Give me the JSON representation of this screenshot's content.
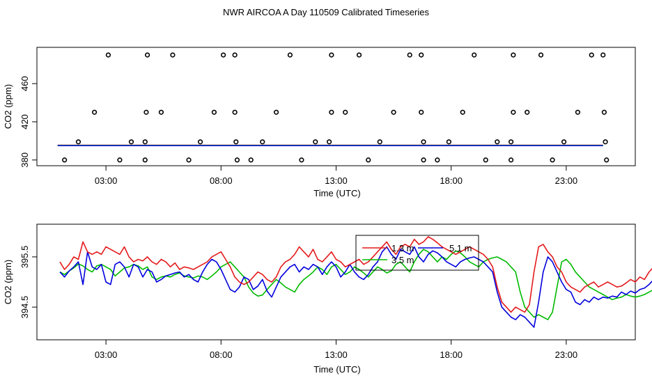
{
  "title": "NWR AIRCOA A  Day 110509  Calibrated Timeseries",
  "colors": {
    "red": "#e41a1c",
    "green": "#00bb00",
    "blue": "#0000dd",
    "axis": "#000000"
  },
  "chart_data": [
    {
      "type": "scatter",
      "xlabel": "Time (UTC)",
      "ylabel": "CO2 (ppm)",
      "x_unit": "hours UTC",
      "xlim": [
        0,
        26
      ],
      "ylim": [
        374,
        498
      ],
      "x_ticks": [
        {
          "value": 3,
          "label": "03:00"
        },
        {
          "value": 8,
          "label": "08:00"
        },
        {
          "value": 13,
          "label": "13:00"
        },
        {
          "value": 18,
          "label": "18:00"
        },
        {
          "value": 23,
          "label": "23:00"
        }
      ],
      "y_ticks": [
        {
          "value": 380,
          "label": "380"
        },
        {
          "value": 420,
          "label": "420"
        },
        {
          "value": 460,
          "label": "460"
        }
      ],
      "markers": [
        [
          1.2,
          380
        ],
        [
          1.8,
          399
        ],
        [
          2.5,
          430
        ],
        [
          3.1,
          490
        ],
        [
          3.6,
          380
        ],
        [
          4.1,
          399
        ],
        [
          4.7,
          380
        ],
        [
          4.7,
          399
        ],
        [
          4.75,
          430
        ],
        [
          4.8,
          490
        ],
        [
          5.4,
          430
        ],
        [
          5.9,
          490
        ],
        [
          6.6,
          380
        ],
        [
          7.1,
          399
        ],
        [
          7.7,
          430
        ],
        [
          8.1,
          490
        ],
        [
          8.6,
          490
        ],
        [
          8.6,
          430
        ],
        [
          8.65,
          399
        ],
        [
          8.7,
          380
        ],
        [
          9.3,
          380
        ],
        [
          9.8,
          399
        ],
        [
          10.4,
          430
        ],
        [
          11.0,
          490
        ],
        [
          11.5,
          380
        ],
        [
          12.1,
          399
        ],
        [
          12.7,
          399
        ],
        [
          12.8,
          430
        ],
        [
          12.8,
          490
        ],
        [
          13.4,
          430
        ],
        [
          14.0,
          490
        ],
        [
          14.4,
          380
        ],
        [
          14.9,
          399
        ],
        [
          15.5,
          430
        ],
        [
          16.2,
          490
        ],
        [
          16.7,
          490
        ],
        [
          16.7,
          430
        ],
        [
          16.8,
          399
        ],
        [
          16.8,
          380
        ],
        [
          17.4,
          380
        ],
        [
          17.9,
          399
        ],
        [
          18.5,
          430
        ],
        [
          19.0,
          490
        ],
        [
          19.5,
          380
        ],
        [
          20.0,
          399
        ],
        [
          20.6,
          380
        ],
        [
          20.6,
          399
        ],
        [
          20.7,
          430
        ],
        [
          20.7,
          490
        ],
        [
          21.3,
          430
        ],
        [
          21.9,
          490
        ],
        [
          22.4,
          380
        ],
        [
          22.9,
          399
        ],
        [
          23.5,
          430
        ],
        [
          24.1,
          490
        ],
        [
          24.6,
          490
        ],
        [
          24.65,
          430
        ],
        [
          24.7,
          399
        ],
        [
          24.75,
          380
        ]
      ],
      "baseline": {
        "x_start": 0.9,
        "x_end": 24.6,
        "series": [
          {
            "color": "red",
            "values": [
              395.5,
              395.5
            ]
          },
          {
            "color": "green",
            "values": [
              395.3,
              395.3
            ]
          },
          {
            "color": "blue",
            "values": [
              395.1,
              395.1
            ]
          }
        ]
      }
    },
    {
      "type": "line",
      "xlabel": "Time (UTC)",
      "ylabel": "CO2 (ppm)",
      "x_unit": "hours UTC",
      "xlim": [
        0,
        26
      ],
      "ylim": [
        393.85,
        396.15
      ],
      "x_ticks": [
        {
          "value": 3,
          "label": "03:00"
        },
        {
          "value": 8,
          "label": "08:00"
        },
        {
          "value": 13,
          "label": "13:00"
        },
        {
          "value": 18,
          "label": "18:00"
        },
        {
          "value": 23,
          "label": "23:00"
        }
      ],
      "y_ticks": [
        {
          "value": 394.5,
          "label": "394.5"
        },
        {
          "value": 395.5,
          "label": "395.5"
        }
      ],
      "legend": [
        {
          "label": "1.3 m",
          "color": "red"
        },
        {
          "label": "5.1 m",
          "color": "blue"
        },
        {
          "label": "3.5 m",
          "color": "green"
        }
      ],
      "x_start": 1.0,
      "x_step": 0.2,
      "series": [
        {
          "color": "green",
          "values": [
            395.2,
            395.15,
            395.22,
            395.28,
            395.36,
            395.32,
            395.25,
            395.2,
            395.32,
            395.35,
            395.3,
            395.25,
            395.12,
            395.2,
            395.28,
            395.3,
            395.35,
            395.32,
            395.25,
            395.3,
            395.1,
            395.05,
            395.1,
            395.12,
            395.1,
            395.15,
            395.18,
            395.12,
            395.1,
            395.08,
            395.12,
            395.1,
            395.05,
            395.12,
            395.2,
            395.3,
            395.35,
            395.4,
            395.3,
            395.2,
            395.1,
            394.9,
            394.78,
            394.72,
            394.74,
            394.85,
            394.95,
            395.05,
            394.98,
            394.9,
            394.85,
            394.8,
            394.95,
            395.05,
            395.12,
            395.2,
            395.3,
            395.25,
            395.15,
            395.3,
            395.35,
            395.25,
            395.15,
            395.2,
            395.3,
            395.25,
            395.18,
            395.1,
            395.2,
            395.3,
            395.25,
            395.18,
            395.22,
            395.35,
            395.4,
            395.3,
            395.2,
            395.4,
            395.55,
            395.65,
            395.6,
            395.5,
            395.4,
            395.5,
            395.45,
            395.55,
            395.62,
            395.58,
            395.5,
            395.4,
            395.35,
            395.3,
            395.4,
            395.45,
            395.48,
            395.5,
            395.45,
            395.4,
            395.3,
            395.2,
            394.8,
            394.5,
            394.4,
            394.3,
            394.35,
            394.3,
            394.25,
            394.4,
            394.9,
            395.4,
            395.45,
            395.35,
            395.2,
            395.1,
            395.0,
            394.9,
            394.85,
            394.8,
            394.75,
            394.7,
            394.65,
            394.68,
            394.7,
            394.75,
            394.72,
            394.7,
            394.72,
            394.75,
            394.8,
            394.85,
            394.9,
            394.95,
            395.0,
            395.1,
            395.15,
            395.2,
            395.25,
            395.3,
            395.4,
            395.5,
            395.4,
            395.35,
            395.45,
            395.6,
            395.7
          ]
        },
        {
          "color": "blue",
          "values": [
            395.2,
            395.1,
            395.22,
            395.3,
            395.4,
            394.95,
            395.6,
            395.3,
            395.25,
            395.35,
            395.0,
            394.95,
            395.35,
            395.4,
            395.3,
            395.1,
            395.35,
            395.3,
            395.1,
            395.25,
            395.2,
            395.0,
            395.05,
            395.12,
            395.15,
            395.18,
            395.2,
            395.1,
            395.15,
            395.05,
            395.0,
            395.2,
            395.35,
            395.45,
            395.4,
            395.25,
            395.05,
            394.85,
            394.8,
            394.9,
            395.1,
            395.05,
            394.85,
            394.92,
            395.05,
            394.82,
            394.7,
            394.9,
            395.1,
            395.2,
            395.3,
            395.35,
            395.2,
            395.3,
            395.25,
            395.35,
            395.3,
            395.15,
            395.3,
            395.4,
            395.3,
            395.1,
            395.2,
            395.35,
            395.2,
            395.1,
            395.05,
            395.15,
            395.3,
            395.4,
            395.6,
            395.7,
            395.55,
            395.45,
            395.65,
            395.6,
            395.55,
            395.7,
            395.5,
            395.4,
            395.55,
            395.62,
            395.58,
            395.5,
            395.4,
            395.35,
            395.3,
            395.4,
            395.45,
            395.48,
            395.5,
            395.45,
            395.4,
            395.3,
            395.2,
            394.8,
            394.5,
            394.4,
            394.3,
            394.25,
            394.35,
            394.3,
            394.2,
            394.1,
            394.6,
            395.2,
            395.5,
            395.4,
            395.2,
            395.0,
            394.85,
            394.8,
            394.6,
            394.55,
            394.65,
            394.6,
            394.7,
            394.65,
            394.7,
            394.68,
            394.72,
            394.7,
            394.8,
            394.75,
            394.82,
            394.78,
            394.85,
            394.88,
            394.95,
            395.05,
            395.2,
            395.35,
            395.4,
            395.3,
            395.45,
            395.5,
            395.55,
            395.6,
            395.5,
            395.6,
            395.55,
            395.65,
            395.7,
            395.2,
            395.8
          ]
        },
        {
          "color": "red",
          "values": [
            395.4,
            395.25,
            395.35,
            395.5,
            395.45,
            395.8,
            395.6,
            395.55,
            395.6,
            395.55,
            395.7,
            395.65,
            395.6,
            395.55,
            395.7,
            395.5,
            395.4,
            395.45,
            395.42,
            395.5,
            395.4,
            395.35,
            395.45,
            395.4,
            395.3,
            395.38,
            395.25,
            395.3,
            395.28,
            395.25,
            395.3,
            395.35,
            395.4,
            395.5,
            395.55,
            395.6,
            395.45,
            395.3,
            395.1,
            395.0,
            394.95,
            395.0,
            395.1,
            395.2,
            395.15,
            395.05,
            395.0,
            395.1,
            395.3,
            395.4,
            395.45,
            395.55,
            395.7,
            395.6,
            395.5,
            395.65,
            395.45,
            395.4,
            395.5,
            395.6,
            395.45,
            395.4,
            395.3,
            395.35,
            395.4,
            395.45,
            395.35,
            395.4,
            395.5,
            395.6,
            395.7,
            395.8,
            395.65,
            395.55,
            395.7,
            395.75,
            395.7,
            395.85,
            395.75,
            395.8,
            395.9,
            395.85,
            395.78,
            395.7,
            395.65,
            395.6,
            395.55,
            395.6,
            395.65,
            395.7,
            395.65,
            395.6,
            395.55,
            395.45,
            395.3,
            394.9,
            394.6,
            394.5,
            394.4,
            394.5,
            394.45,
            394.4,
            394.55,
            395.2,
            395.7,
            395.75,
            395.6,
            395.5,
            395.3,
            395.2,
            395.0,
            394.9,
            394.85,
            394.8,
            394.9,
            394.95,
            395.0,
            394.9,
            394.95,
            395.0,
            394.95,
            394.9,
            394.92,
            394.98,
            395.05,
            395.0,
            395.1,
            395.05,
            395.2,
            395.3,
            395.4,
            395.55,
            395.6,
            395.45,
            395.6,
            395.65,
            395.75,
            395.7,
            395.8,
            395.65,
            395.7,
            395.75,
            395.8,
            395.7,
            396.0
          ]
        }
      ]
    }
  ]
}
